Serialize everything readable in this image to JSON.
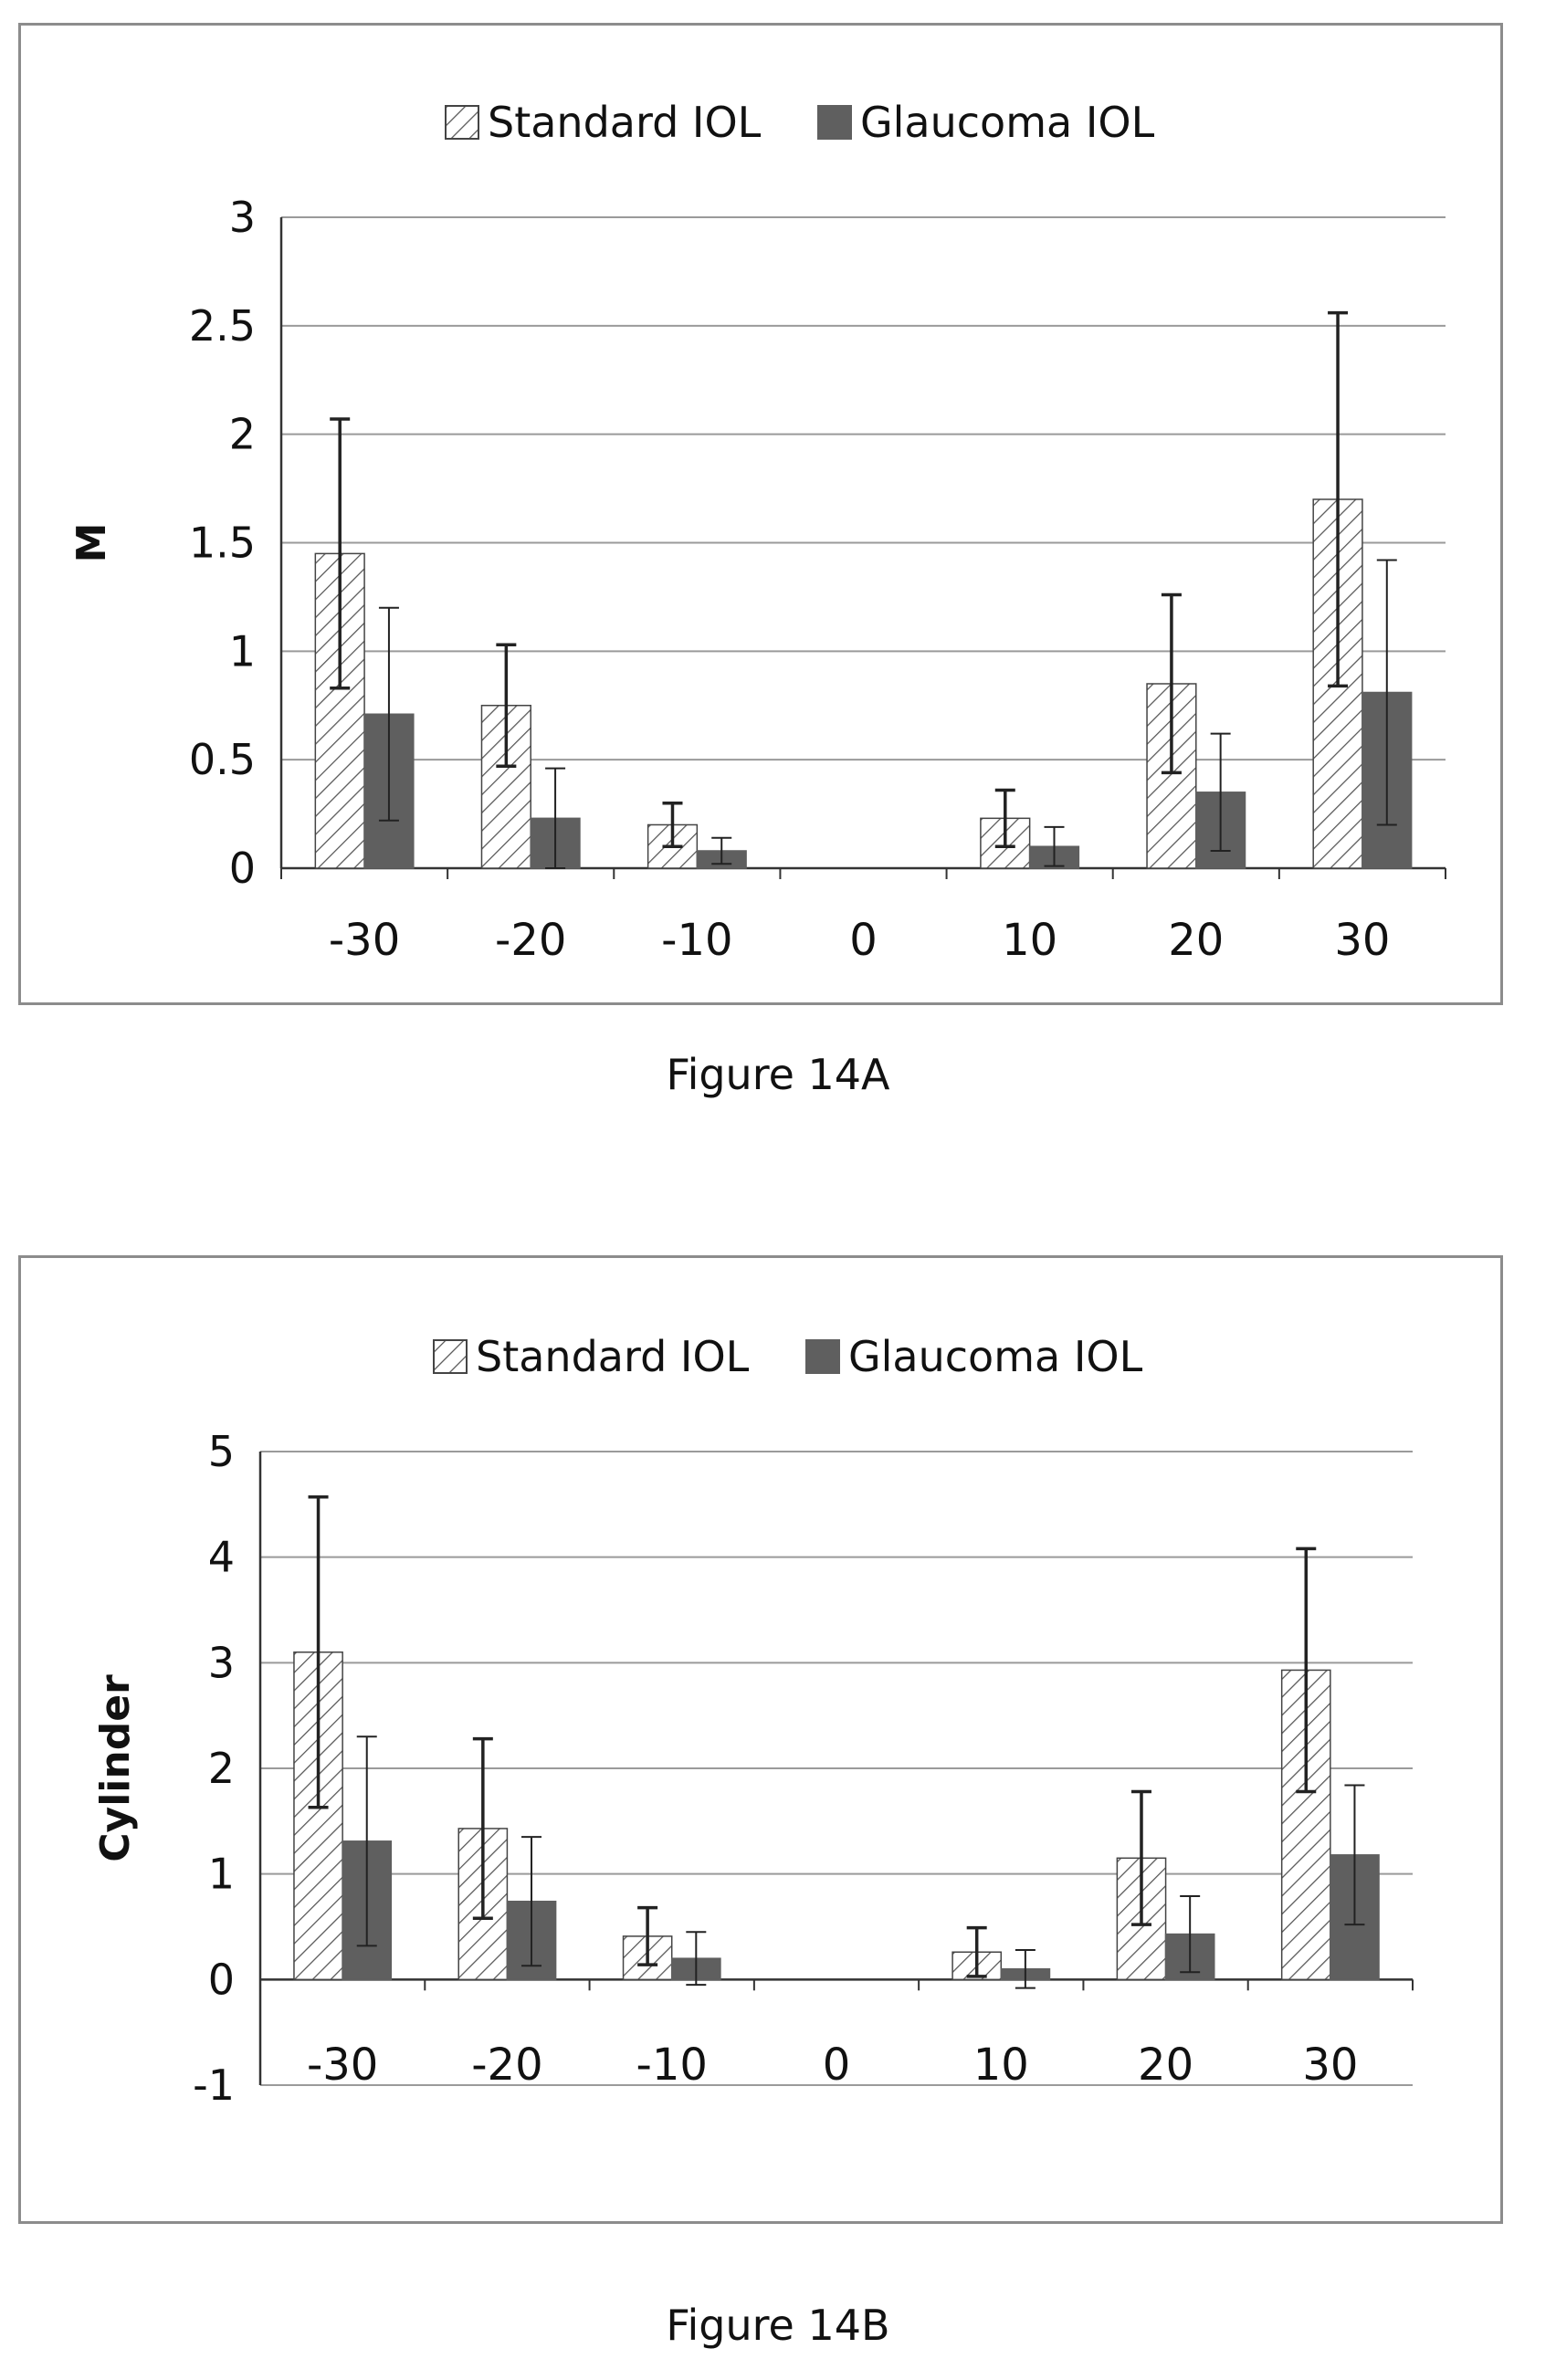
{
  "chart_data": [
    {
      "type": "bar",
      "caption": "Figure 14A",
      "ylabel": "M",
      "ylim": [
        0,
        3
      ],
      "yticks": [
        0,
        0.5,
        1,
        1.5,
        2,
        2.5,
        3
      ],
      "grid": true,
      "legend_position": "top-center",
      "categories": [
        "-30",
        "-20",
        "-10",
        "0",
        "10",
        "20",
        "30"
      ],
      "series": [
        {
          "name": "Standard IOL",
          "pattern": "hatched",
          "values": [
            1.45,
            0.75,
            0.2,
            0,
            0.23,
            0.85,
            1.7
          ],
          "errors": [
            0.62,
            0.28,
            0.1,
            0,
            0.13,
            0.41,
            0.86
          ]
        },
        {
          "name": "Glaucoma IOL",
          "pattern": "solid",
          "values": [
            0.71,
            0.23,
            0.08,
            0,
            0.1,
            0.35,
            0.81
          ],
          "errors": [
            0.49,
            0.23,
            0.06,
            0,
            0.09,
            0.27,
            0.61
          ]
        }
      ]
    },
    {
      "type": "bar",
      "caption": "Figure 14B",
      "ylabel": "Cylinder",
      "ylim": [
        -1,
        5
      ],
      "yticks": [
        -1,
        0,
        1,
        2,
        3,
        4,
        5
      ],
      "grid": true,
      "legend_position": "top-center",
      "categories": [
        "-30",
        "-20",
        "-10",
        "0",
        "10",
        "20",
        "30"
      ],
      "series": [
        {
          "name": "Standard IOL",
          "pattern": "hatched",
          "values": [
            3.1,
            1.43,
            0.41,
            0,
            0.26,
            1.15,
            2.93
          ],
          "errors": [
            1.47,
            0.85,
            0.27,
            0,
            0.23,
            0.63,
            1.15
          ]
        },
        {
          "name": "Glaucoma IOL",
          "pattern": "solid",
          "values": [
            1.31,
            0.74,
            0.2,
            0,
            0.1,
            0.43,
            1.18
          ],
          "errors": [
            0.99,
            0.61,
            0.25,
            0,
            0.18,
            0.36,
            0.66
          ]
        }
      ]
    }
  ],
  "colors": {
    "glaucoma_fill": "#5f5f5f",
    "hatch_stroke": "#555555",
    "axis": "#333333",
    "grid": "#9a9a9a",
    "panel_border": "#8c8c8c"
  }
}
